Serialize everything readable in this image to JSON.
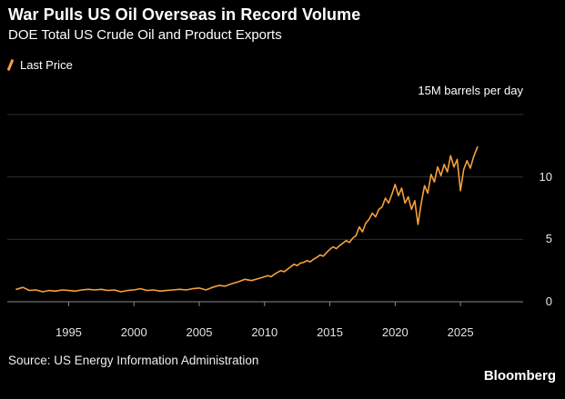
{
  "header": {
    "title": "War Pulls US Oil Overseas in Record Volume",
    "subtitle": "DOE Total US Crude Oil and Product Exports"
  },
  "legend": {
    "label": "Last Price"
  },
  "colors": {
    "background": "#000000",
    "accent": "#f7a03c",
    "gridline": "#2e2e2e",
    "axis_line": "#8a8a8a",
    "text": "#ffffff"
  },
  "axis": {
    "y_unit_label": "15M barrels per day",
    "y_gridlines": [
      0,
      5,
      10,
      15
    ],
    "y_tick_labels": [
      {
        "value": 10,
        "label": "10"
      },
      {
        "value": 5,
        "label": "5"
      },
      {
        "value": 0,
        "label": "0"
      }
    ],
    "x_tick_labels": [
      {
        "value": 1995,
        "label": "1995"
      },
      {
        "value": 2000,
        "label": "2000"
      },
      {
        "value": 2005,
        "label": "2005"
      },
      {
        "value": 2010,
        "label": "2010"
      },
      {
        "value": 2015,
        "label": "2015"
      },
      {
        "value": 2020,
        "label": "2020"
      },
      {
        "value": 2025,
        "label": "2025"
      }
    ]
  },
  "footer": {
    "source": "Source: US Energy Information Administration",
    "brand": "Bloomberg"
  },
  "chart_data": {
    "type": "line",
    "title": "War Pulls US Oil Overseas in Record Volume",
    "subtitle": "DOE Total US Crude Oil and Product Exports",
    "xlabel": "",
    "ylabel": "M barrels per day",
    "xlim": [
      1990.3,
      2029.8
    ],
    "ylim": [
      0,
      15
    ],
    "grid": "horizontal",
    "legend_position": "top-left",
    "series": [
      {
        "name": "Last Price",
        "color": "#f7a03c",
        "x": [
          1991,
          1991.5,
          1992,
          1992.5,
          1993,
          1993.5,
          1994,
          1994.5,
          1995,
          1995.5,
          1996,
          1996.5,
          1997,
          1997.5,
          1998,
          1998.5,
          1999,
          1999.5,
          2000,
          2000.5,
          2001,
          2001.5,
          2002,
          2002.5,
          2003,
          2003.5,
          2004,
          2004.5,
          2005,
          2005.5,
          2006,
          2006.5,
          2007,
          2007.5,
          2008,
          2008.5,
          2009,
          2009.5,
          2010,
          2010.25,
          2010.5,
          2010.75,
          2011,
          2011.25,
          2011.5,
          2011.75,
          2012,
          2012.25,
          2012.5,
          2012.75,
          2013,
          2013.25,
          2013.5,
          2013.75,
          2014,
          2014.25,
          2014.5,
          2014.75,
          2015,
          2015.25,
          2015.5,
          2015.75,
          2016,
          2016.25,
          2016.5,
          2016.75,
          2017,
          2017.25,
          2017.5,
          2017.75,
          2018,
          2018.25,
          2018.5,
          2018.75,
          2019,
          2019.25,
          2019.5,
          2019.75,
          2020,
          2020.25,
          2020.5,
          2020.75,
          2021,
          2021.25,
          2021.5,
          2021.75,
          2022,
          2022.25,
          2022.5,
          2022.75,
          2023,
          2023.25,
          2023.5,
          2023.75,
          2024,
          2024.25,
          2024.5,
          2024.75,
          2025,
          2025.25,
          2025.5,
          2025.75,
          2026,
          2026.3
        ],
        "values": [
          1.0,
          1.15,
          0.9,
          0.95,
          0.8,
          0.9,
          0.85,
          0.95,
          0.9,
          0.85,
          0.95,
          1.0,
          0.95,
          1.0,
          0.9,
          0.95,
          0.8,
          0.9,
          0.95,
          1.05,
          0.9,
          0.95,
          0.85,
          0.9,
          0.95,
          1.0,
          0.95,
          1.05,
          1.1,
          0.95,
          1.15,
          1.3,
          1.25,
          1.45,
          1.6,
          1.8,
          1.7,
          1.85,
          2.0,
          2.1,
          2.0,
          2.2,
          2.35,
          2.5,
          2.4,
          2.6,
          2.8,
          3.0,
          2.9,
          3.1,
          3.15,
          3.3,
          3.2,
          3.4,
          3.55,
          3.75,
          3.65,
          3.95,
          4.2,
          4.4,
          4.25,
          4.5,
          4.7,
          4.9,
          4.75,
          5.1,
          5.3,
          6.0,
          5.6,
          6.3,
          6.6,
          7.1,
          6.8,
          7.4,
          7.6,
          8.3,
          7.9,
          8.6,
          9.4,
          8.5,
          9.1,
          7.9,
          8.4,
          7.4,
          8.1,
          6.2,
          7.9,
          9.3,
          8.7,
          10.2,
          9.6,
          10.8,
          10.1,
          11.0,
          10.4,
          11.7,
          10.8,
          11.4,
          8.9,
          10.6,
          11.3,
          10.7,
          11.6,
          12.4
        ]
      }
    ]
  }
}
